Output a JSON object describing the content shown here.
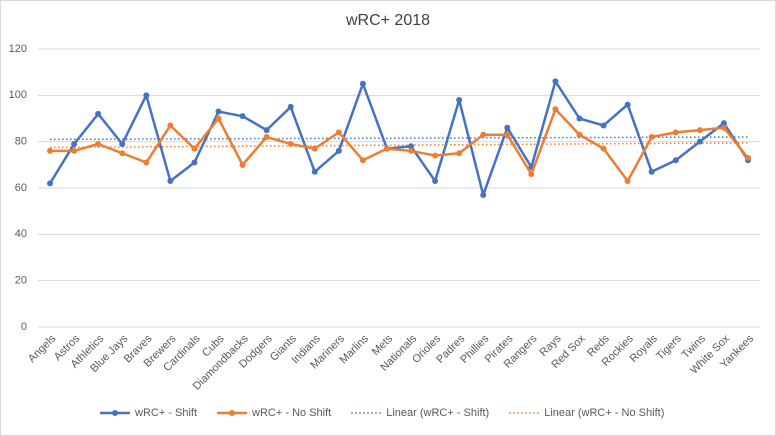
{
  "chart_data": {
    "type": "line",
    "title": "wRC+ 2018",
    "categories": [
      "Angels",
      "Astros",
      "Athletics",
      "Blue Jays",
      "Braves",
      "Brewers",
      "Cardinals",
      "Cubs",
      "Diamondbacks",
      "Dodgers",
      "Giants",
      "Indians",
      "Mariners",
      "Marlins",
      "Mets",
      "Nationals",
      "Orioles",
      "Padres",
      "Phillies",
      "Pirates",
      "Rangers",
      "Rays",
      "Red Sox",
      "Reds",
      "Rockies",
      "Royals",
      "Tigers",
      "Twins",
      "White Sox",
      "Yankees"
    ],
    "series": [
      {
        "name": "wRC+ - Shift",
        "color": "#4472c4",
        "values": [
          62,
          79,
          92,
          79,
          100,
          63,
          71,
          93,
          91,
          85,
          95,
          67,
          76,
          105,
          77,
          78,
          63,
          98,
          57,
          86,
          69,
          106,
          90,
          87,
          96,
          67,
          72,
          80,
          88,
          72
        ]
      },
      {
        "name": "wRC+ - No Shift",
        "color": "#ed7d31",
        "values": [
          76,
          76,
          79,
          75,
          71,
          87,
          77,
          90,
          70,
          82,
          79,
          77,
          84,
          72,
          77,
          76,
          74,
          75,
          83,
          83,
          66,
          94,
          83,
          77,
          63,
          82,
          84,
          85,
          86,
          73
        ]
      }
    ],
    "trendlines": [
      {
        "name": "Linear (wRC+ - Shift)",
        "color": "#4472c4",
        "values": [
          81,
          82
        ]
      },
      {
        "name": "Linear (wRC+ - No Shift)",
        "color": "#ed7d31",
        "values": [
          77.5,
          79.5
        ]
      }
    ],
    "ylim": [
      0,
      120
    ],
    "yticks": [
      0,
      20,
      40,
      60,
      80,
      100,
      120
    ],
    "grid": true
  }
}
